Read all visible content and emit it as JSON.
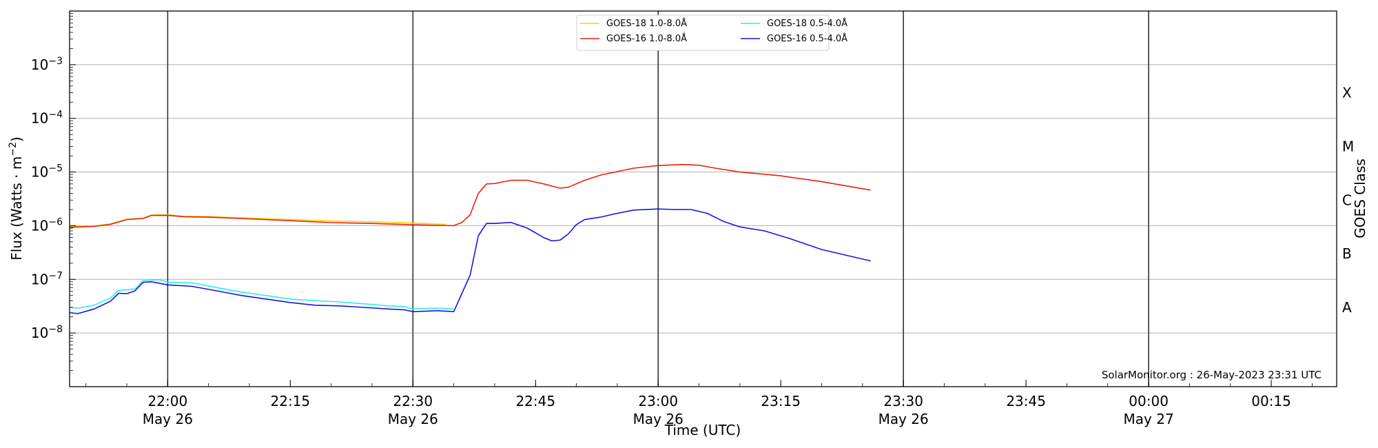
{
  "chart_data": {
    "type": "line",
    "title": "",
    "xlabel": "Time (UTC)",
    "ylabel": "Flux (Watts · m⁻²)",
    "y_scale": "log",
    "ylim": [
      1e-09,
      0.01
    ],
    "xlim": [
      "2023-05-26 21:48",
      "2023-05-27 00:23"
    ],
    "y_tick_labels": [
      {
        "value": 1e-08,
        "base": "10",
        "exp": "−8"
      },
      {
        "value": 1e-07,
        "base": "10",
        "exp": "−7"
      },
      {
        "value": 1e-06,
        "base": "10",
        "exp": "−6"
      },
      {
        "value": 1e-05,
        "base": "10",
        "exp": "−5"
      },
      {
        "value": 0.0001,
        "base": "10",
        "exp": "−4"
      },
      {
        "value": 0.001,
        "base": "10",
        "exp": "−3"
      }
    ],
    "x_ticks": [
      {
        "time": "2023-05-26 22:00",
        "label": "22:00",
        "date": "May 26",
        "major": true
      },
      {
        "time": "2023-05-26 22:15",
        "label": "22:15",
        "date": "",
        "major": false
      },
      {
        "time": "2023-05-26 22:30",
        "label": "22:30",
        "date": "May 26",
        "major": true
      },
      {
        "time": "2023-05-26 22:45",
        "label": "22:45",
        "date": "",
        "major": false
      },
      {
        "time": "2023-05-26 23:00",
        "label": "23:00",
        "date": "May 26",
        "major": true
      },
      {
        "time": "2023-05-26 23:15",
        "label": "23:15",
        "date": "",
        "major": false
      },
      {
        "time": "2023-05-26 23:30",
        "label": "23:30",
        "date": "May 26",
        "major": true
      },
      {
        "time": "2023-05-26 23:45",
        "label": "23:45",
        "date": "",
        "major": false
      },
      {
        "time": "2023-05-27 00:00",
        "label": "00:00",
        "date": "May 27",
        "major": true
      },
      {
        "time": "2023-05-27 00:15",
        "label": "00:15",
        "date": "",
        "major": false
      }
    ],
    "grid": "horizontal at decades; vertical lines at 30-minute marks",
    "secondary_axis": {
      "label": "GOES Class",
      "classes": [
        {
          "label": "A",
          "value": 3e-08
        },
        {
          "label": "B",
          "value": 3e-07
        },
        {
          "label": "C",
          "value": 3e-06
        },
        {
          "label": "M",
          "value": 3e-05
        },
        {
          "label": "X",
          "value": 0.0003
        }
      ]
    },
    "legend": {
      "placement": "top-center",
      "columns": 2
    },
    "annotation": "SolarMonitor.org : 26-May-2023 23:31 UTC",
    "series": [
      {
        "name": "GOES-18 1.0-8.0Å",
        "color": "#f2d600",
        "points": [
          [
            "2023-05-26 21:48",
            9.6e-07
          ],
          [
            "2023-05-26 21:51",
            9.9e-07
          ],
          [
            "2023-05-26 21:53",
            1.08e-06
          ],
          [
            "2023-05-26 21:55",
            1.32e-06
          ],
          [
            "2023-05-26 21:57",
            1.38e-06
          ],
          [
            "2023-05-26 21:58",
            1.58e-06
          ],
          [
            "2023-05-26 22:00",
            1.6e-06
          ],
          [
            "2023-05-26 22:02",
            1.5e-06
          ],
          [
            "2023-05-26 22:05",
            1.48e-06
          ],
          [
            "2023-05-26 22:10",
            1.38e-06
          ],
          [
            "2023-05-26 22:15",
            1.3e-06
          ],
          [
            "2023-05-26 22:20",
            1.22e-06
          ],
          [
            "2023-05-26 22:25",
            1.18e-06
          ],
          [
            "2023-05-26 22:30",
            1.12e-06
          ],
          [
            "2023-05-26 22:34",
            1.06e-06
          ]
        ]
      },
      {
        "name": "GOES-16 1.0-8.0Å",
        "color": "#e8200c",
        "points": [
          [
            "2023-05-26 21:48",
            9.3e-07
          ],
          [
            "2023-05-26 21:51",
            9.7e-07
          ],
          [
            "2023-05-26 21:53",
            1.06e-06
          ],
          [
            "2023-05-26 21:55",
            1.3e-06
          ],
          [
            "2023-05-26 21:57",
            1.36e-06
          ],
          [
            "2023-05-26 21:58",
            1.55e-06
          ],
          [
            "2023-05-26 22:00",
            1.56e-06
          ],
          [
            "2023-05-26 22:02",
            1.46e-06
          ],
          [
            "2023-05-26 22:05",
            1.44e-06
          ],
          [
            "2023-05-26 22:10",
            1.34e-06
          ],
          [
            "2023-05-26 22:15",
            1.24e-06
          ],
          [
            "2023-05-26 22:20",
            1.14e-06
          ],
          [
            "2023-05-26 22:25",
            1.1e-06
          ],
          [
            "2023-05-26 22:30",
            1.04e-06
          ],
          [
            "2023-05-26 22:35",
            1e-06
          ],
          [
            "2023-05-26 22:36",
            1.15e-06
          ],
          [
            "2023-05-26 22:37",
            1.6e-06
          ],
          [
            "2023-05-26 22:38",
            4e-06
          ],
          [
            "2023-05-26 22:39",
            6e-06
          ],
          [
            "2023-05-26 22:40",
            6.1e-06
          ],
          [
            "2023-05-26 22:42",
            7e-06
          ],
          [
            "2023-05-26 22:44",
            7e-06
          ],
          [
            "2023-05-26 22:46",
            6e-06
          ],
          [
            "2023-05-26 22:48",
            5e-06
          ],
          [
            "2023-05-26 22:49",
            5.2e-06
          ],
          [
            "2023-05-26 22:51",
            7e-06
          ],
          [
            "2023-05-26 22:53",
            8.8e-06
          ],
          [
            "2023-05-26 22:55",
            1.02e-05
          ],
          [
            "2023-05-26 22:57",
            1.18e-05
          ],
          [
            "2023-05-26 23:00",
            1.32e-05
          ],
          [
            "2023-05-26 23:03",
            1.38e-05
          ],
          [
            "2023-05-26 23:05",
            1.34e-05
          ],
          [
            "2023-05-26 23:07",
            1.18e-05
          ],
          [
            "2023-05-26 23:10",
            1e-05
          ],
          [
            "2023-05-26 23:15",
            8.5e-06
          ],
          [
            "2023-05-26 23:20",
            6.6e-06
          ],
          [
            "2023-05-26 23:26",
            4.6e-06
          ]
        ]
      },
      {
        "name": "GOES-18 0.5-4.0Å",
        "color": "#2eecec",
        "points": [
          [
            "2023-05-26 21:48",
            3e-08
          ],
          [
            "2023-05-26 21:49",
            2.9e-08
          ],
          [
            "2023-05-26 21:51",
            3.3e-08
          ],
          [
            "2023-05-26 21:53",
            4.5e-08
          ],
          [
            "2023-05-26 21:54",
            6.2e-08
          ],
          [
            "2023-05-26 21:56",
            6.6e-08
          ],
          [
            "2023-05-26 21:57",
            9.5e-08
          ],
          [
            "2023-05-26 21:59",
            9.8e-08
          ],
          [
            "2023-05-26 22:00",
            8.8e-08
          ],
          [
            "2023-05-26 22:03",
            8.6e-08
          ],
          [
            "2023-05-26 22:06",
            7e-08
          ],
          [
            "2023-05-26 22:09",
            5.8e-08
          ],
          [
            "2023-05-26 22:12",
            5e-08
          ],
          [
            "2023-05-26 22:15",
            4.3e-08
          ],
          [
            "2023-05-26 22:18",
            4e-08
          ],
          [
            "2023-05-26 22:21",
            3.8e-08
          ],
          [
            "2023-05-26 22:24",
            3.5e-08
          ],
          [
            "2023-05-26 22:27",
            3.2e-08
          ],
          [
            "2023-05-26 22:29",
            3.1e-08
          ],
          [
            "2023-05-26 22:30",
            2.8e-08
          ],
          [
            "2023-05-26 22:33",
            2.9e-08
          ],
          [
            "2023-05-26 22:35",
            2.8e-08
          ]
        ]
      },
      {
        "name": "GOES-16 0.5-4.0Å",
        "color": "#1414e8",
        "points": [
          [
            "2023-05-26 21:48",
            2.4e-08
          ],
          [
            "2023-05-26 21:49",
            2.3e-08
          ],
          [
            "2023-05-26 21:51",
            2.8e-08
          ],
          [
            "2023-05-26 21:53",
            3.9e-08
          ],
          [
            "2023-05-26 21:54",
            5.5e-08
          ],
          [
            "2023-05-26 21:55",
            5.4e-08
          ],
          [
            "2023-05-26 21:56",
            6.1e-08
          ],
          [
            "2023-05-26 21:57",
            8.8e-08
          ],
          [
            "2023-05-26 21:58",
            9e-08
          ],
          [
            "2023-05-26 22:00",
            7.9e-08
          ],
          [
            "2023-05-26 22:03",
            7.4e-08
          ],
          [
            "2023-05-26 22:06",
            6.1e-08
          ],
          [
            "2023-05-26 22:09",
            5e-08
          ],
          [
            "2023-05-26 22:12",
            4.3e-08
          ],
          [
            "2023-05-26 22:15",
            3.7e-08
          ],
          [
            "2023-05-26 22:18",
            3.3e-08
          ],
          [
            "2023-05-26 22:21",
            3.2e-08
          ],
          [
            "2023-05-26 22:24",
            3e-08
          ],
          [
            "2023-05-26 22:27",
            2.8e-08
          ],
          [
            "2023-05-26 22:29",
            2.7e-08
          ],
          [
            "2023-05-26 22:30",
            2.5e-08
          ],
          [
            "2023-05-26 22:33",
            2.6e-08
          ],
          [
            "2023-05-26 22:35",
            2.5e-08
          ],
          [
            "2023-05-26 22:36",
            5.5e-08
          ],
          [
            "2023-05-26 22:37",
            1.2e-07
          ],
          [
            "2023-05-26 22:38",
            6.5e-07
          ],
          [
            "2023-05-26 22:39",
            1.1e-06
          ],
          [
            "2023-05-26 22:40",
            1.1e-06
          ],
          [
            "2023-05-26 22:42",
            1.15e-06
          ],
          [
            "2023-05-26 22:44",
            9e-07
          ],
          [
            "2023-05-26 22:46",
            6e-07
          ],
          [
            "2023-05-26 22:47",
            5.2e-07
          ],
          [
            "2023-05-26 22:48",
            5.4e-07
          ],
          [
            "2023-05-26 22:49",
            7e-07
          ],
          [
            "2023-05-26 22:50",
            1.05e-06
          ],
          [
            "2023-05-26 22:51",
            1.3e-06
          ],
          [
            "2023-05-26 22:53",
            1.45e-06
          ],
          [
            "2023-05-26 22:55",
            1.7e-06
          ],
          [
            "2023-05-26 22:57",
            1.95e-06
          ],
          [
            "2023-05-26 23:00",
            2.05e-06
          ],
          [
            "2023-05-26 23:02",
            2e-06
          ],
          [
            "2023-05-26 23:04",
            2e-06
          ],
          [
            "2023-05-26 23:06",
            1.7e-06
          ],
          [
            "2023-05-26 23:08",
            1.2e-06
          ],
          [
            "2023-05-26 23:10",
            9.5e-07
          ],
          [
            "2023-05-26 23:13",
            8e-07
          ],
          [
            "2023-05-26 23:16",
            5.8e-07
          ],
          [
            "2023-05-26 23:20",
            3.6e-07
          ],
          [
            "2023-05-26 23:26",
            2.2e-07
          ]
        ]
      }
    ]
  }
}
